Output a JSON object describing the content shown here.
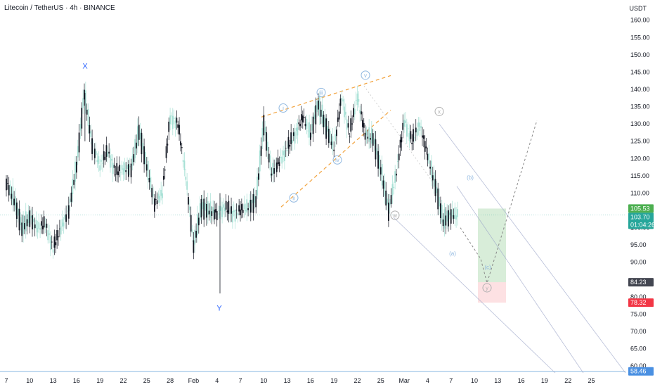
{
  "header": {
    "title": "Litecoin / TetherUS · 4h · BINANCE",
    "currency": "USDT"
  },
  "colors": {
    "up": "#a8e1d6",
    "down": "#131722",
    "wave_blue": "#90b8e0",
    "wave_grey": "#b0b0b0",
    "fib_orange": "#f2a23c",
    "target_green": "#4caf50",
    "stop_red": "#f23645",
    "dark_tag": "#434651",
    "support_blue": "#5b9bd5"
  },
  "chart_data": {
    "type": "candlestick",
    "symbol": "LTCUSDT",
    "timeframe": "4h",
    "ylim": [
      58,
      163
    ],
    "y_ticks": [
      "160.00",
      "155.00",
      "150.00",
      "145.00",
      "140.00",
      "135.00",
      "130.00",
      "125.00",
      "120.00",
      "115.00",
      "110.00",
      "100.00",
      "95.00",
      "90.00",
      "80.00",
      "75.00",
      "70.00",
      "65.00",
      "60.00"
    ],
    "x_ticks": [
      "7",
      "10",
      "13",
      "16",
      "19",
      "22",
      "25",
      "28",
      "Feb",
      "4",
      "7",
      "10",
      "13",
      "16",
      "19",
      "22",
      "25",
      "Mar",
      "4",
      "7",
      "10",
      "13",
      "16",
      "19",
      "22",
      "25"
    ],
    "price_path": [
      {
        "x": "7",
        "y": 113
      },
      {
        "x": "8",
        "y": 108
      },
      {
        "x": "9",
        "y": 100
      },
      {
        "x": "10",
        "y": 103
      },
      {
        "x": "11",
        "y": 100
      },
      {
        "x": "12",
        "y": 101
      },
      {
        "x": "13",
        "y": 94
      },
      {
        "x": "14",
        "y": 100
      },
      {
        "x": "15",
        "y": 105
      },
      {
        "x": "16",
        "y": 118
      },
      {
        "x": "17",
        "y": 139
      },
      {
        "x": "18",
        "y": 124
      },
      {
        "x": "19",
        "y": 118
      },
      {
        "x": "20",
        "y": 122
      },
      {
        "x": "21",
        "y": 116
      },
      {
        "x": "22",
        "y": 117
      },
      {
        "x": "23",
        "y": 117
      },
      {
        "x": "24",
        "y": 128
      },
      {
        "x": "25",
        "y": 118
      },
      {
        "x": "26",
        "y": 107
      },
      {
        "x": "27",
        "y": 110
      },
      {
        "x": "28",
        "y": 132
      },
      {
        "x": "29",
        "y": 130
      },
      {
        "x": "30",
        "y": 115
      },
      {
        "x": "31",
        "y": 95
      },
      {
        "x": "Feb",
        "y": 106
      },
      {
        "x": "2",
        "y": 105
      },
      {
        "x": "3",
        "y": 104
      },
      {
        "x": "4",
        "y": 106
      },
      {
        "x": "5",
        "y": 104
      },
      {
        "x": "6",
        "y": 105
      },
      {
        "x": "7",
        "y": 106
      },
      {
        "x": "8",
        "y": 108
      },
      {
        "x": "9",
        "y": 130
      },
      {
        "x": "10",
        "y": 116
      },
      {
        "x": "11",
        "y": 119
      },
      {
        "x": "12",
        "y": 123
      },
      {
        "x": "13",
        "y": 127
      },
      {
        "x": "14",
        "y": 132
      },
      {
        "x": "15",
        "y": 127
      },
      {
        "x": "16",
        "y": 136
      },
      {
        "x": "17",
        "y": 129
      },
      {
        "x": "18",
        "y": 123
      },
      {
        "x": "19",
        "y": 138
      },
      {
        "x": "20",
        "y": 127
      },
      {
        "x": "21",
        "y": 138
      },
      {
        "x": "22",
        "y": 127
      },
      {
        "x": "23",
        "y": 126
      },
      {
        "x": "24",
        "y": 117
      },
      {
        "x": "25",
        "y": 105
      },
      {
        "x": "26",
        "y": 116
      },
      {
        "x": "27",
        "y": 131
      },
      {
        "x": "28",
        "y": 125
      },
      {
        "x": "Mar",
        "y": 130
      },
      {
        "x": "2",
        "y": 121
      },
      {
        "x": "3",
        "y": 112
      },
      {
        "x": "4",
        "y": 102
      },
      {
        "x": "5",
        "y": 103.7
      }
    ],
    "price_line": 103.7,
    "extremes": {
      "wave_x_high": 139,
      "wave_y_low": 81
    },
    "wave_labels": [
      {
        "label": "X",
        "x": "17",
        "y": 146
      },
      {
        "label": "Y",
        "x": "31",
        "y": 76
      },
      {
        "label": "i",
        "x": "9",
        "y": 134
      },
      {
        "label": "ii",
        "x": "11",
        "y": 108
      },
      {
        "label": "iii",
        "x": "16",
        "y": 138.5
      },
      {
        "label": "iv",
        "x": "18",
        "y": 119
      },
      {
        "label": "v",
        "x": "21",
        "y": 143.5
      },
      {
        "label": "w",
        "x": "25",
        "y": 103
      },
      {
        "label": "x",
        "x": "Mar",
        "y": 133
      },
      {
        "label": "(a)",
        "x": "4",
        "y": 92
      },
      {
        "label": "(b)",
        "x": "6",
        "y": 114
      },
      {
        "label": "(c)",
        "x": "7",
        "y": 88
      },
      {
        "label": "y",
        "x": "7",
        "y": 82
      }
    ],
    "price_tags": [
      {
        "label": "105.53",
        "value": 105.53,
        "kind": "green"
      },
      {
        "label": "103.70",
        "value": 103.7,
        "kind": "teal"
      },
      {
        "label": "01:04:26",
        "value": 103.7,
        "kind": "timer"
      },
      {
        "label": "84.23",
        "value": 84.23,
        "kind": "dark"
      },
      {
        "label": "78.32",
        "value": 78.32,
        "kind": "red"
      },
      {
        "label": "58.46",
        "value": 58.46,
        "kind": "blue"
      }
    ],
    "position_box": {
      "entry": 84.23,
      "target": 105.53,
      "stop": 78.32
    },
    "support_level": 58.46
  }
}
